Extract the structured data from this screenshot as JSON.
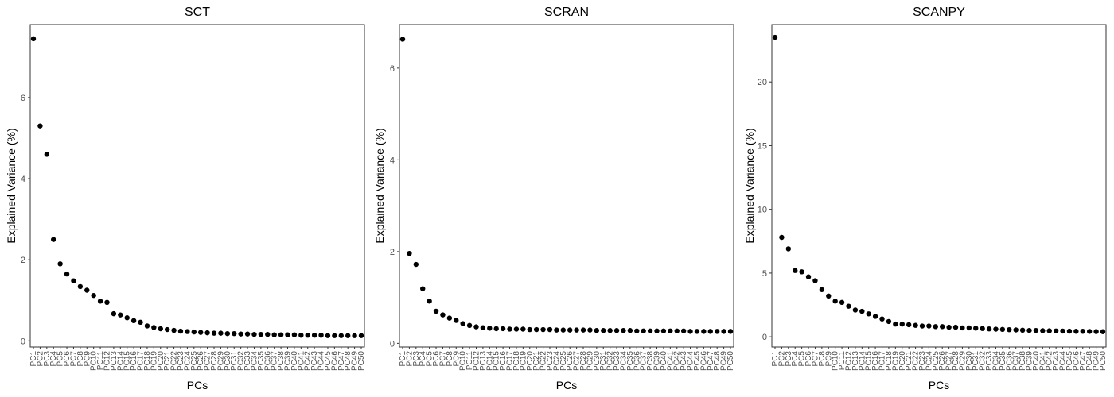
{
  "chart_data": [
    {
      "type": "scatter",
      "title": "SCT",
      "xlabel": "PCs",
      "ylabel": "Explained Variance (%)",
      "categories": [
        "PC1",
        "PC2",
        "PC3",
        "PC4",
        "PC5",
        "PC6",
        "PC7",
        "PC8",
        "PC9",
        "PC10",
        "PC11",
        "PC12",
        "PC13",
        "PC14",
        "PC15",
        "PC16",
        "PC17",
        "PC18",
        "PC19",
        "PC20",
        "PC21",
        "PC22",
        "PC23",
        "PC24",
        "PC25",
        "PC26",
        "PC27",
        "PC28",
        "PC29",
        "PC30",
        "PC31",
        "PC32",
        "PC33",
        "PC34",
        "PC35",
        "PC36",
        "PC37",
        "PC38",
        "PC39",
        "PC40",
        "PC41",
        "PC42",
        "PC43",
        "PC44",
        "PC45",
        "PC46",
        "PC47",
        "PC48",
        "PC49",
        "PC50"
      ],
      "values": [
        7.45,
        5.3,
        4.6,
        2.5,
        1.9,
        1.65,
        1.48,
        1.34,
        1.25,
        1.12,
        0.98,
        0.95,
        0.67,
        0.64,
        0.57,
        0.5,
        0.46,
        0.37,
        0.33,
        0.3,
        0.28,
        0.26,
        0.24,
        0.23,
        0.22,
        0.21,
        0.2,
        0.19,
        0.19,
        0.18,
        0.18,
        0.17,
        0.17,
        0.16,
        0.16,
        0.16,
        0.15,
        0.15,
        0.15,
        0.15,
        0.14,
        0.14,
        0.14,
        0.14,
        0.13,
        0.13,
        0.13,
        0.13,
        0.13,
        0.13
      ],
      "yticks": [
        0,
        2,
        4,
        6
      ],
      "ylim": [
        -0.15,
        7.8
      ],
      "grid": false
    },
    {
      "type": "scatter",
      "title": "SCRAN",
      "xlabel": "PCs",
      "ylabel": "Explained Variance (%)",
      "categories": [
        "PC1",
        "PC2",
        "PC3",
        "PC4",
        "PC5",
        "PC6",
        "PC7",
        "PC8",
        "PC9",
        "PC10",
        "PC11",
        "PC12",
        "PC13",
        "PC14",
        "PC15",
        "PC16",
        "PC17",
        "PC18",
        "PC19",
        "PC20",
        "PC21",
        "PC22",
        "PC23",
        "PC24",
        "PC25",
        "PC26",
        "PC27",
        "PC28",
        "PC29",
        "PC30",
        "PC31",
        "PC32",
        "PC33",
        "PC34",
        "PC35",
        "PC36",
        "PC37",
        "PC38",
        "PC39",
        "PC40",
        "PC41",
        "PC42",
        "PC43",
        "PC44",
        "PC45",
        "PC46",
        "PC47",
        "PC48",
        "PC49",
        "PC50"
      ],
      "values": [
        6.63,
        1.96,
        1.72,
        1.19,
        0.92,
        0.7,
        0.62,
        0.55,
        0.5,
        0.43,
        0.39,
        0.36,
        0.34,
        0.33,
        0.32,
        0.32,
        0.31,
        0.31,
        0.31,
        0.3,
        0.3,
        0.3,
        0.3,
        0.29,
        0.29,
        0.29,
        0.29,
        0.29,
        0.29,
        0.28,
        0.28,
        0.28,
        0.28,
        0.28,
        0.28,
        0.27,
        0.27,
        0.27,
        0.27,
        0.27,
        0.27,
        0.27,
        0.27,
        0.26,
        0.26,
        0.26,
        0.26,
        0.26,
        0.26,
        0.26
      ],
      "yticks": [
        0,
        2,
        4,
        6
      ],
      "ylim": [
        -0.08,
        6.95
      ],
      "grid": false
    },
    {
      "type": "scatter",
      "title": "SCANPY",
      "xlabel": "PCs",
      "ylabel": "Explained Variance (%)",
      "categories": [
        "PC1",
        "PC2",
        "PC3",
        "PC4",
        "PC5",
        "PC6",
        "PC7",
        "PC8",
        "PC9",
        "PC10",
        "PC11",
        "PC12",
        "PC13",
        "PC14",
        "PC15",
        "PC16",
        "PC17",
        "PC18",
        "PC19",
        "PC20",
        "PC21",
        "PC22",
        "PC23",
        "PC24",
        "PC25",
        "PC26",
        "PC27",
        "PC28",
        "PC29",
        "PC30",
        "PC31",
        "PC32",
        "PC33",
        "PC34",
        "PC35",
        "PC36",
        "PC37",
        "PC38",
        "PC39",
        "PC40",
        "PC41",
        "PC42",
        "PC43",
        "PC44",
        "PC45",
        "PC46",
        "PC47",
        "PC48",
        "PC49",
        "PC50"
      ],
      "values": [
        23.5,
        7.8,
        6.9,
        5.2,
        5.1,
        4.7,
        4.4,
        3.7,
        3.2,
        2.8,
        2.7,
        2.4,
        2.1,
        2.0,
        1.8,
        1.6,
        1.4,
        1.2,
        1.0,
        1.0,
        0.95,
        0.9,
        0.85,
        0.85,
        0.8,
        0.8,
        0.75,
        0.75,
        0.7,
        0.7,
        0.68,
        0.65,
        0.62,
        0.6,
        0.58,
        0.56,
        0.54,
        0.52,
        0.5,
        0.5,
        0.48,
        0.47,
        0.46,
        0.45,
        0.44,
        0.43,
        0.43,
        0.42,
        0.41,
        0.4
      ],
      "yticks": [
        0,
        5,
        10,
        15,
        20
      ],
      "ylim": [
        -0.8,
        24.5
      ],
      "grid": false
    }
  ]
}
